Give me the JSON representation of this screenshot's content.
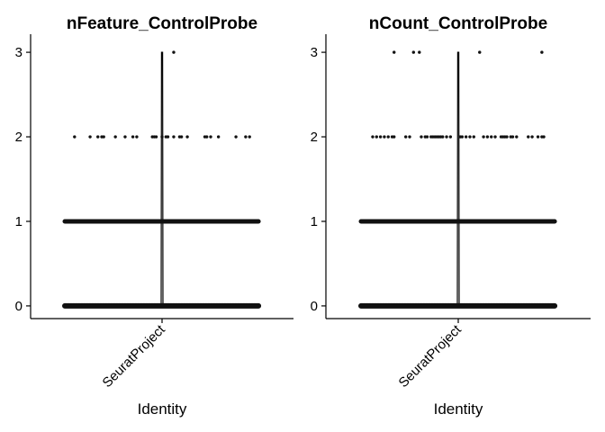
{
  "chart_data": [
    {
      "type": "violin",
      "title": "nFeature_ControlProbe",
      "xlabel": "Identity",
      "ylabel": "",
      "categories": [
        "SeuratProject"
      ],
      "yticks": [
        0,
        1,
        2,
        3
      ],
      "ylim": [
        -0.15,
        3.15
      ],
      "violin_max": 3,
      "points": [
        {
          "y": 0,
          "x_from": -0.5,
          "x_to": 0.5,
          "dense": true
        },
        {
          "y": 1,
          "x_from": -0.5,
          "x_to": 0.5,
          "dense": true
        },
        {
          "y": 2,
          "jitter": [
            -0.45,
            -0.37,
            -0.33,
            -0.31,
            -0.3,
            -0.24,
            -0.19,
            -0.15,
            -0.13,
            -0.05,
            -0.04,
            -0.03,
            0.0,
            0.02,
            0.03,
            0.06,
            0.09,
            0.1,
            0.13,
            0.22,
            0.23,
            0.25,
            0.29,
            0.38,
            0.43,
            0.45
          ]
        },
        {
          "y": 3,
          "jitter": [
            0.06
          ]
        }
      ]
    },
    {
      "type": "violin",
      "title": "nCount_ControlProbe",
      "xlabel": "Identity",
      "ylabel": "",
      "categories": [
        "SeuratProject"
      ],
      "yticks": [
        0,
        1,
        2,
        3
      ],
      "ylim": [
        -0.15,
        3.15
      ],
      "violin_max": 3,
      "points": [
        {
          "y": 0,
          "x_from": -0.5,
          "x_to": 0.5,
          "dense": true
        },
        {
          "y": 1,
          "x_from": -0.5,
          "x_to": 0.5,
          "dense": true
        },
        {
          "y": 2,
          "jitter": [
            -0.44,
            -0.42,
            -0.4,
            -0.38,
            -0.36,
            -0.34,
            -0.33,
            -0.27,
            -0.25,
            -0.19,
            -0.17,
            -0.16,
            -0.14,
            -0.13,
            -0.12,
            -0.11,
            -0.1,
            -0.09,
            -0.08,
            -0.06,
            -0.04,
            0.01,
            0.02,
            0.04,
            0.06,
            0.08,
            0.13,
            0.15,
            0.17,
            0.19,
            0.22,
            0.23,
            0.24,
            0.25,
            0.27,
            0.28,
            0.3,
            0.36,
            0.38,
            0.41,
            0.43,
            0.44
          ]
        },
        {
          "y": 3,
          "jitter": [
            -0.33,
            -0.23,
            -0.2,
            0.11,
            0.43
          ]
        }
      ]
    }
  ]
}
